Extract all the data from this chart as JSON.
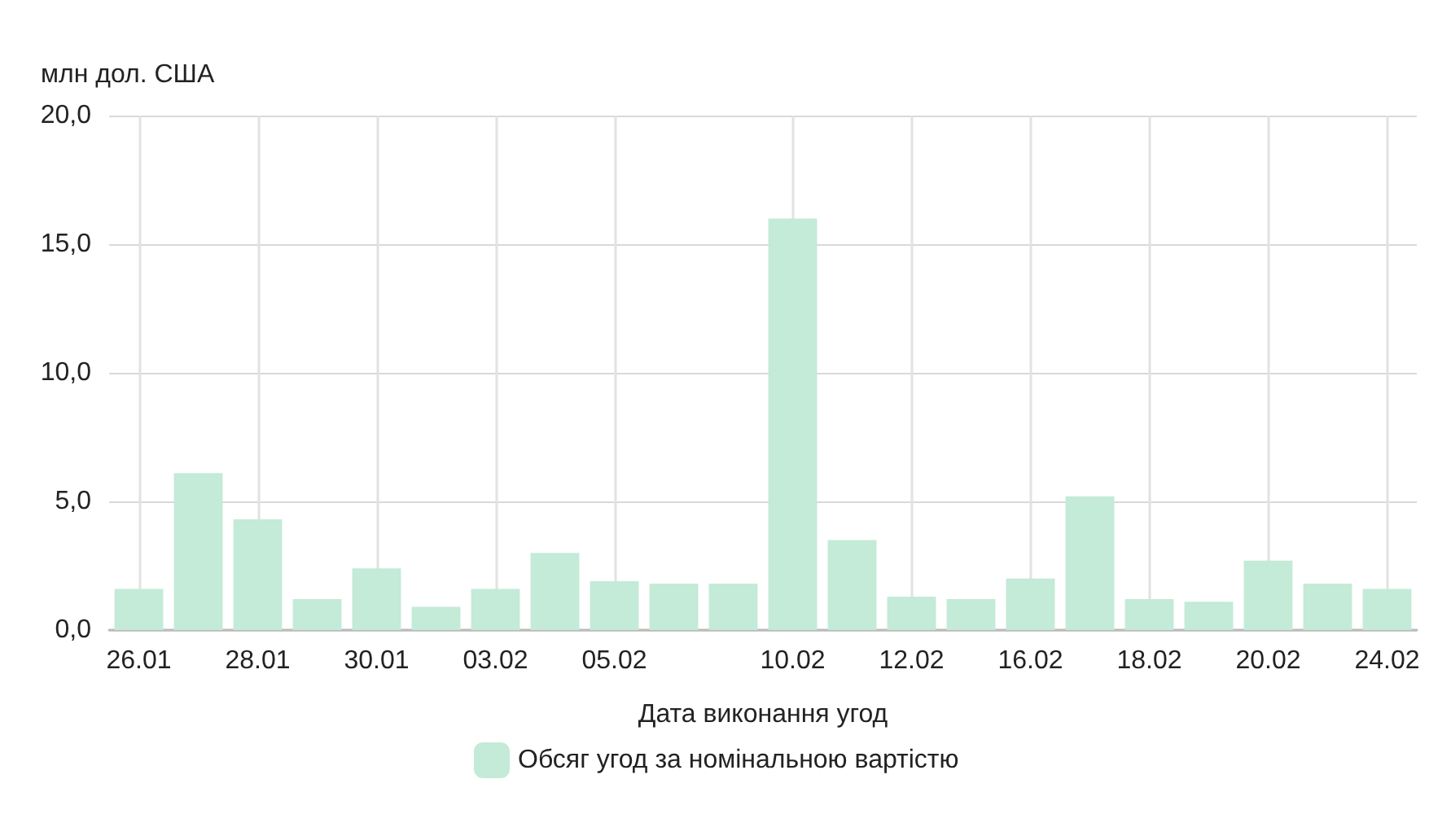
{
  "chart_data": {
    "type": "bar",
    "ylabel": "млн дол. США",
    "xlabel": "Дата виконання угод",
    "categories": [
      "26.01",
      null,
      "28.01",
      null,
      "30.01",
      null,
      "03.02",
      null,
      "05.02",
      null,
      null,
      "10.02",
      null,
      "12.02",
      null,
      "16.02",
      null,
      "18.02",
      null,
      "20.02",
      null,
      "24.02"
    ],
    "series": [
      {
        "name": "Обсяг угод за номінальною вартістю",
        "color": "#c4ead8",
        "values": [
          1.6,
          6.1,
          4.3,
          1.2,
          2.4,
          0.9,
          1.6,
          3.0,
          1.9,
          1.8,
          1.8,
          16.0,
          3.5,
          1.3,
          1.2,
          2.0,
          5.2,
          1.2,
          1.1,
          2.7,
          1.8,
          1.6
        ]
      }
    ],
    "ylim": [
      0,
      20
    ],
    "yticks": [
      {
        "value": 0,
        "label": "0,0"
      },
      {
        "value": 5,
        "label": "5,0"
      },
      {
        "value": 10,
        "label": "10,0"
      },
      {
        "value": 15,
        "label": "15,0"
      },
      {
        "value": 20,
        "label": "20,0"
      }
    ],
    "grid": true,
    "legend": "bottom"
  }
}
